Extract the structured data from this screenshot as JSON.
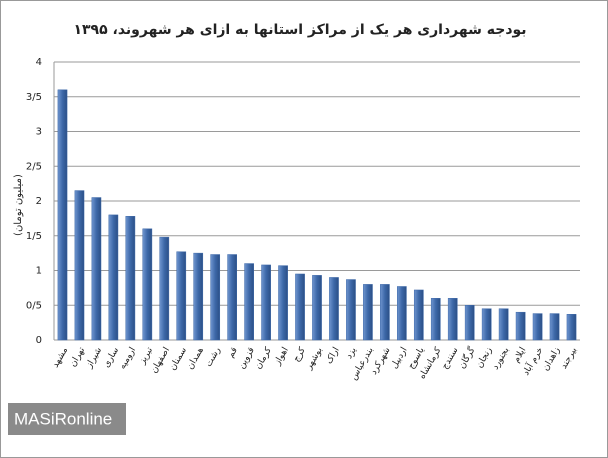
{
  "chart_data": {
    "type": "bar",
    "title": "بودجه شهرداری هر یک از مراکز استانها به ازای هر شهروند، ۱۳۹۵",
    "y_label": "(میلیون تومان)",
    "watermark": "MASiRonline",
    "categories": [
      "مشهد",
      "تهران",
      "شیراز",
      "ساری",
      "ارومیه",
      "تبریز",
      "اصفهان",
      "سمنان",
      "همدان",
      "رشت",
      "قم",
      "قزوین",
      "کرمان",
      "اهواز",
      "کرج",
      "بوشهر",
      "اراک",
      "یزد",
      "بندرعباس",
      "شهرکرد",
      "اردبیل",
      "یاسوج",
      "کرمانشاه",
      "سنندج",
      "گرگان",
      "زنجان",
      "بجنورد",
      "ایلام",
      "خرم آباد",
      "زاهدان",
      "بیرجند"
    ],
    "values": [
      3.6,
      2.15,
      2.05,
      1.8,
      1.78,
      1.6,
      1.48,
      1.27,
      1.25,
      1.23,
      1.23,
      1.1,
      1.08,
      1.07,
      0.95,
      0.93,
      0.9,
      0.87,
      0.8,
      0.8,
      0.77,
      0.72,
      0.6,
      0.6,
      0.5,
      0.45,
      0.45,
      0.4,
      0.38,
      0.38,
      0.37
    ],
    "color": "#3d68a8",
    "ylim": [
      0,
      4
    ],
    "yticks": [
      0,
      {
        "value": 0.5,
        "label": "0/5"
      },
      1,
      {
        "value": 1.5,
        "label": "1/5"
      },
      2,
      {
        "value": 2.5,
        "label": "2/5"
      },
      3,
      {
        "value": 3.5,
        "label": "3/5"
      },
      4
    ],
    "grid": true
  }
}
